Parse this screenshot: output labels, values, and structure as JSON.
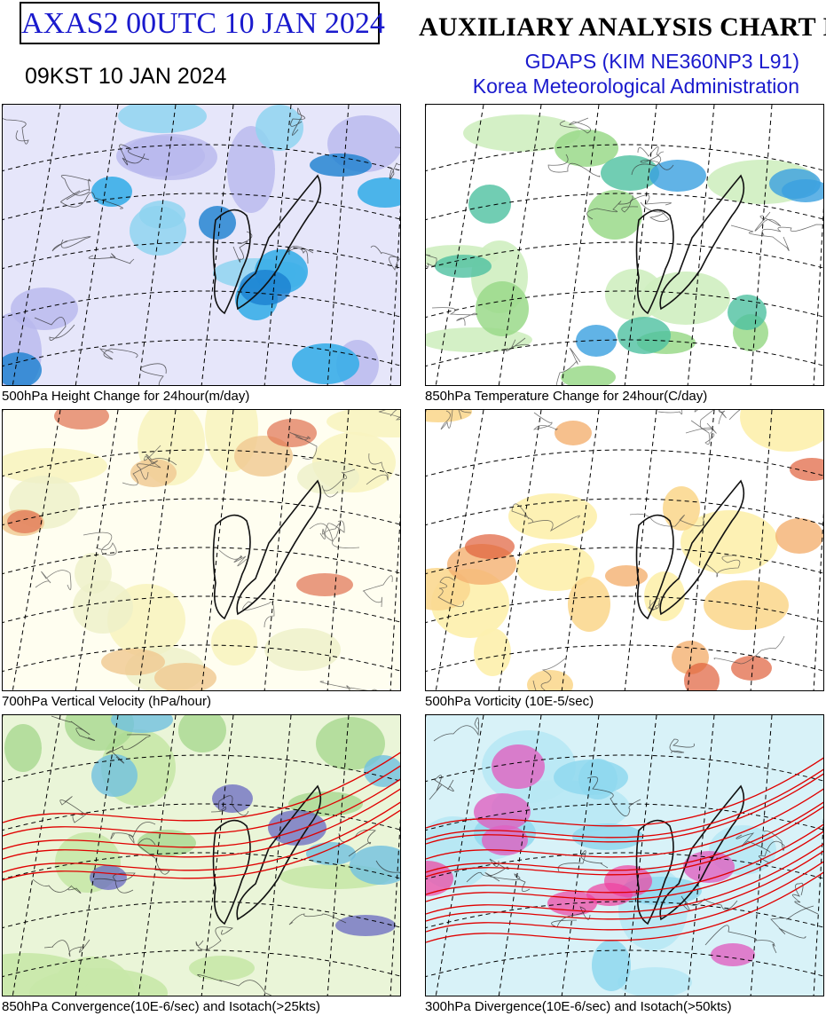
{
  "header": {
    "box_title": "AXAS2  00UTC 10 JAN 2024",
    "local_time": "09KST 10 JAN 2024",
    "chart_title": "AUXILIARY ANALYSIS CHART II",
    "model": "GDAPS (KIM NE360NP3 L91)",
    "agency": "Korea Meteorological Administration"
  },
  "panels": [
    {
      "caption": "500hPa Height Change for 24hour(m/day)",
      "theme": "height"
    },
    {
      "caption": "850hPa Temperature Change for 24hour(C/day)",
      "theme": "temp"
    },
    {
      "caption": "700hPa Vertical Velocity (hPa/hour)",
      "theme": "vvel"
    },
    {
      "caption": "500hPa Vorticity (10E-5/sec)",
      "theme": "vort"
    },
    {
      "caption": "850hPa Convergence(10E-6/sec) and Isotach(>25kts)",
      "theme": "conv"
    },
    {
      "caption": "300hPa Divergence(10E-6/sec) and Isotach(>50kts)",
      "theme": "div"
    }
  ],
  "colors": {
    "title_blue": "#1a1acd",
    "label_red": "#e00000",
    "lat_label_blue": "#2020c0"
  }
}
